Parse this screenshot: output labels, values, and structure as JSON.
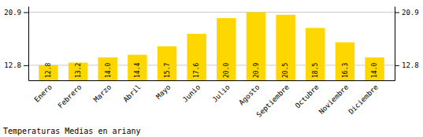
{
  "chart_data": {
    "type": "bar",
    "title": "Temperaturas Medias en ariany",
    "categories": [
      "Enero",
      "Febrero",
      "Marzo",
      "Abril",
      "Mayo",
      "Junio",
      "Julio",
      "Agosto",
      "Septiembre",
      "Octubre",
      "Noviembre",
      "Diciembre"
    ],
    "values": [
      12.8,
      13.2,
      14.0,
      14.4,
      15.7,
      17.6,
      20.0,
      20.9,
      20.5,
      18.5,
      16.3,
      14.0
    ],
    "value_labels": [
      "12.8",
      "13.2",
      "14.0",
      "14.4",
      "15.7",
      "17.6",
      "20.0",
      "20.9",
      "20.5",
      "18.5",
      "16.3",
      "14.0"
    ],
    "color": "#FFD700",
    "ylim": [
      10.5,
      21.8
    ],
    "yticks": [
      12.8,
      20.9
    ],
    "grid": true,
    "data_labels": true
  }
}
